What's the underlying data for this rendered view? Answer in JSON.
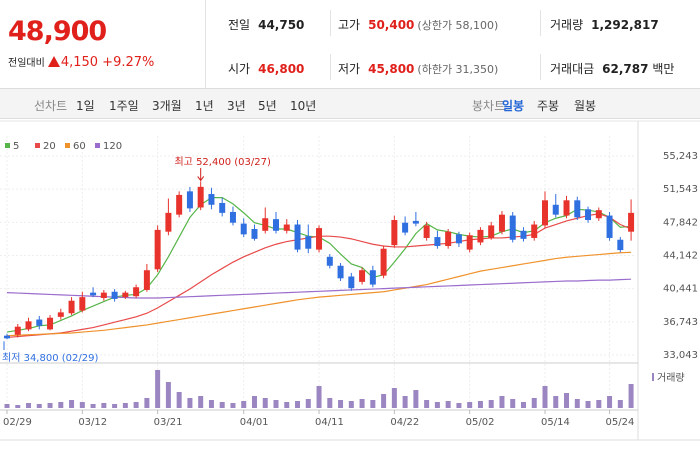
{
  "quote": {
    "price": "48,900",
    "change_label": "전일대비",
    "change": "4,150",
    "change_pct": "+9.27%"
  },
  "stats": [
    {
      "label": "전일",
      "value": "44,750"
    },
    {
      "label": "고가",
      "value": "50,400",
      "note": "(상한가 58,100)"
    },
    {
      "label": "거래량",
      "value": "1,292,817"
    },
    {
      "label": "시가",
      "value": "46,800"
    },
    {
      "label": "저가",
      "value": "45,800",
      "note": "(하한가 31,350)"
    },
    {
      "label": "거래대금",
      "value": "62,787",
      "unit": "백만"
    }
  ],
  "tabs": {
    "line_label": "선차트",
    "line_periods": [
      "1일",
      "1주일",
      "3개월",
      "1년",
      "3년",
      "5년",
      "10년"
    ],
    "candle_label": "봉차트",
    "candle_periods": [
      "일봉",
      "주봉",
      "월봉"
    ],
    "candle_selected": 0
  },
  "chart_data": {
    "type": "candlestick",
    "up_color": "#e8322c",
    "down_color": "#2f6fe0",
    "categories": [
      "02/29",
      null,
      null,
      null,
      null,
      null,
      null,
      "03/12",
      null,
      null,
      null,
      null,
      null,
      null,
      "03/21",
      null,
      null,
      null,
      null,
      null,
      null,
      null,
      "04/01",
      null,
      null,
      null,
      null,
      null,
      null,
      "04/11",
      null,
      null,
      null,
      null,
      null,
      null,
      "04/22",
      null,
      null,
      null,
      null,
      null,
      null,
      "05/02",
      null,
      null,
      null,
      null,
      null,
      null,
      "05/14",
      null,
      null,
      null,
      null,
      null,
      "05/24",
      null,
      null
    ],
    "open": [
      35200,
      35300,
      35900,
      37000,
      35900,
      37300,
      37700,
      38000,
      40000,
      39400,
      40100,
      39500,
      39600,
      40300,
      42600,
      46800,
      48700,
      51300,
      49500,
      51000,
      50000,
      49000,
      47700,
      47100,
      46900,
      48200,
      46900,
      47600,
      46300,
      44800,
      44000,
      43000,
      41800,
      41200,
      42500,
      41900,
      45300,
      47800,
      48000,
      46100,
      46200,
      45200,
      46500,
      44800,
      45600,
      46100,
      46800,
      48600,
      46900,
      46100,
      47500,
      49800,
      48600,
      50300,
      49300,
      48300,
      48600,
      45900,
      46800
    ],
    "high": [
      35400,
      36500,
      37200,
      37400,
      37500,
      38200,
      39500,
      40100,
      40600,
      40300,
      40400,
      40200,
      40900,
      43200,
      47500,
      50500,
      51300,
      51800,
      52400,
      51700,
      50600,
      49600,
      48300,
      47600,
      49500,
      49000,
      48200,
      48100,
      47600,
      47500,
      44300,
      43300,
      42200,
      42800,
      43000,
      45200,
      48600,
      48500,
      49000,
      47900,
      46900,
      47100,
      46800,
      46700,
      47300,
      47900,
      49100,
      49000,
      47300,
      48000,
      51300,
      51000,
      50800,
      50700,
      49600,
      49500,
      49000,
      46200,
      50400
    ],
    "low": [
      34800,
      35000,
      35700,
      35900,
      35800,
      37000,
      37500,
      37800,
      39500,
      39100,
      39000,
      39300,
      39400,
      40100,
      42300,
      46400,
      48400,
      49000,
      49200,
      49300,
      48500,
      47500,
      46200,
      45800,
      46600,
      46600,
      46600,
      44500,
      44400,
      44500,
      42700,
      41300,
      40200,
      40900,
      40600,
      41600,
      45000,
      46400,
      47400,
      45800,
      44900,
      44900,
      45100,
      44500,
      45300,
      45900,
      46500,
      45600,
      45700,
      45800,
      47200,
      48400,
      48300,
      48100,
      47800,
      48000,
      45800,
      44500,
      45800
    ],
    "close": [
      34900,
      36200,
      36800,
      36300,
      37200,
      37800,
      39100,
      39500,
      39700,
      40000,
      39300,
      40000,
      40600,
      42500,
      47000,
      48900,
      50900,
      49400,
      51800,
      49800,
      48900,
      47800,
      46500,
      46000,
      48300,
      46900,
      47600,
      44800,
      44900,
      47200,
      43000,
      41600,
      40500,
      42500,
      40900,
      44900,
      48100,
      46700,
      47700,
      47500,
      45200,
      46800,
      45500,
      46400,
      47000,
      47500,
      48700,
      45900,
      46000,
      47600,
      50300,
      48700,
      50300,
      48400,
      48100,
      49200,
      46100,
      44750,
      48900
    ],
    "series": [
      {
        "name": "5",
        "color": "#55b548",
        "values": [
          35600,
          35800,
          36000,
          36300,
          36400,
          36900,
          37400,
          38000,
          38500,
          39000,
          39500,
          39700,
          39800,
          40500,
          42000,
          44000,
          46200,
          48400,
          49800,
          50600,
          50600,
          49900,
          48900,
          47800,
          47500,
          47100,
          47100,
          46700,
          46300,
          46200,
          45500,
          44300,
          43200,
          42800,
          41700,
          42000,
          43400,
          44900,
          46600,
          47700,
          47000,
          46800,
          46500,
          46300,
          46200,
          46300,
          46800,
          47100,
          46700,
          46900,
          47800,
          48300,
          48600,
          49300,
          49200,
          49000,
          48400,
          47300,
          47400
        ]
      },
      {
        "name": "20",
        "color": "#e84a4a",
        "values": [
          35000,
          35100,
          35200,
          35300,
          35400,
          35500,
          35700,
          35900,
          36100,
          36400,
          36700,
          37000,
          37300,
          37700,
          38300,
          39000,
          39700,
          40400,
          41200,
          42000,
          42700,
          43400,
          44000,
          44500,
          45000,
          45400,
          45700,
          45900,
          46100,
          46300,
          46300,
          46200,
          46000,
          45700,
          45400,
          45200,
          45100,
          45100,
          45200,
          45300,
          45400,
          45500,
          45700,
          45900,
          46000,
          46100,
          46100,
          46200,
          46300,
          46500,
          47200,
          47600,
          48000,
          48300,
          48600,
          48800,
          48400,
          47600,
          47100
        ]
      },
      {
        "name": "60",
        "color": "#f0922b",
        "values": [
          35200,
          35250,
          35300,
          35350,
          35400,
          35450,
          35500,
          35600,
          35700,
          35800,
          35950,
          36100,
          36250,
          36400,
          36600,
          36800,
          37000,
          37200,
          37400,
          37600,
          37800,
          38000,
          38200,
          38400,
          38600,
          38800,
          39000,
          39200,
          39350,
          39500,
          39600,
          39700,
          39800,
          39900,
          40000,
          40100,
          40300,
          40500,
          40700,
          40900,
          41200,
          41500,
          41800,
          42100,
          42400,
          42600,
          42800,
          43000,
          43200,
          43400,
          43600,
          43800,
          43950,
          44050,
          44150,
          44250,
          44350,
          44450,
          44500
        ]
      },
      {
        "name": "120",
        "color": "#9a6ccc",
        "values": [
          40000,
          39950,
          39900,
          39850,
          39800,
          39750,
          39700,
          39650,
          39600,
          39550,
          39500,
          39450,
          39400,
          39400,
          39400,
          39450,
          39500,
          39550,
          39600,
          39650,
          39700,
          39750,
          39800,
          39850,
          39900,
          39950,
          40000,
          40050,
          40100,
          40150,
          40200,
          40250,
          40300,
          40350,
          40400,
          40450,
          40500,
          40550,
          40600,
          40650,
          40700,
          40750,
          40800,
          40850,
          40900,
          40950,
          41000,
          41050,
          41100,
          41150,
          41200,
          41250,
          41300,
          41300,
          41350,
          41400,
          41400,
          41450,
          41500
        ]
      }
    ],
    "ylim": [
      33043,
      55243
    ],
    "yticks": [
      {
        "value": 33043,
        "label": "33,043"
      },
      {
        "value": 36743,
        "label": "36,743"
      },
      {
        "value": 40441,
        "label": "40,441"
      },
      {
        "value": 44142,
        "label": "44,142"
      },
      {
        "value": 47842,
        "label": "47,842"
      },
      {
        "value": 51543,
        "label": "51,543"
      },
      {
        "value": 55243,
        "label": "55,243"
      }
    ],
    "grid": true,
    "high_annotation": {
      "text": "최고 52,400 (03/27)",
      "index": 18
    },
    "low_annotation": {
      "text": "최저 34,800 (02/29)",
      "index": 0
    },
    "volume_label": "거래량",
    "volume_color": "#9b86c2",
    "volume": [
      4,
      3,
      5,
      4,
      5,
      6,
      8,
      6,
      4,
      5,
      4,
      5,
      6,
      10,
      38,
      26,
      16,
      10,
      12,
      8,
      6,
      5,
      7,
      12,
      10,
      8,
      6,
      7,
      9,
      22,
      10,
      8,
      7,
      9,
      8,
      14,
      20,
      12,
      18,
      8,
      6,
      7,
      5,
      6,
      7,
      8,
      12,
      9,
      6,
      10,
      22,
      12,
      15,
      9,
      7,
      8,
      12,
      8,
      24
    ]
  }
}
